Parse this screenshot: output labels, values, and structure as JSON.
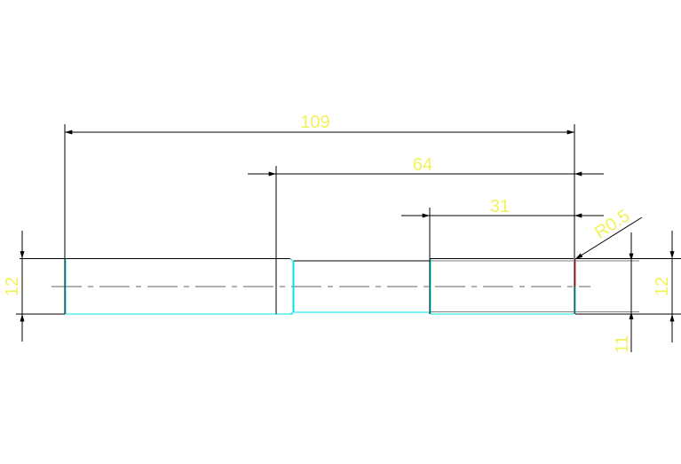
{
  "drawing": {
    "dimensions": {
      "overall_length": "109",
      "length_64": "64",
      "length_31": "31",
      "left_diameter": "12",
      "right_diameter": "12",
      "right_inner": "11",
      "fillet_radius": "R0.5"
    },
    "colors": {
      "outline": "#000000",
      "edge": "#00e5ee",
      "fillet": "#ff3333",
      "dimension_text": "#f2f25a",
      "centerline": "#808080"
    }
  }
}
